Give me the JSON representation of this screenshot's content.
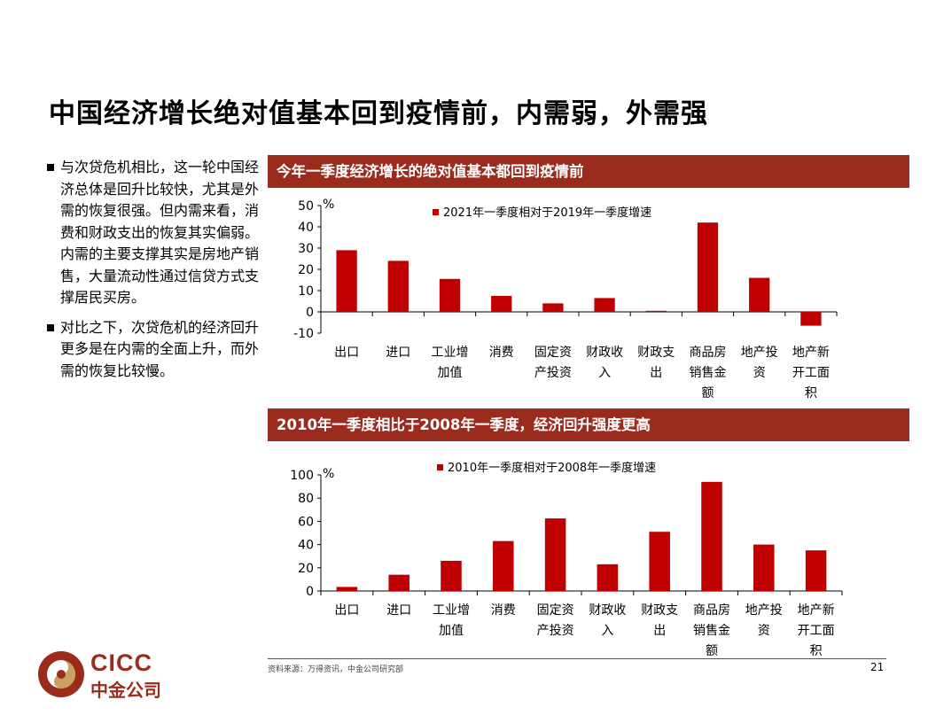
{
  "page": {
    "title": "中国经济增长绝对值基本回到疫情前，内需弱，外需强",
    "bullets": [
      "与次贷危机相比，这一轮中国经济总体是回升比较快，尤其是外需的恢复很强。但内需来看，消费和财政支出的恢复其实偏弱。内需的主要支撑其实是房地产销售，大量流动性通过信贷方式支撑居民买房。",
      "对比之下，次贷危机的经济回升更多是在内需的全面上升，而外需的恢复比较慢。"
    ],
    "chart1_banner": "今年一季度经济增长的绝对值基本都回到疫情前",
    "chart2_banner": "2010年一季度相比于2008年一季度，经济回升强度更高",
    "source": "资料来源：万得资讯，中金公司研究部",
    "page_number": "21",
    "logo": {
      "latin": "CICC",
      "chinese": "中金公司",
      "color": "#9b2b1c"
    }
  },
  "chart_data": [
    {
      "type": "bar",
      "title": "今年一季度经济增长的绝对值基本都回到疫情前",
      "ylabel": "%",
      "ylim": [
        -10,
        50
      ],
      "yticks": [
        "50",
        "40",
        "30",
        "20",
        "10",
        "0",
        "-10"
      ],
      "yticks_values": [
        50,
        40,
        30,
        20,
        10,
        0,
        -10
      ],
      "categories": [
        [
          "出口"
        ],
        [
          "进口"
        ],
        [
          "工业增",
          "加值"
        ],
        [
          "消费"
        ],
        [
          "固定资",
          "产投资"
        ],
        [
          "财政收",
          "入"
        ],
        [
          "财政支",
          "出"
        ],
        [
          "商品房",
          "销售金",
          "额"
        ],
        [
          "地产投",
          "资"
        ],
        [
          "地产新",
          "开工面",
          "积"
        ]
      ],
      "series": [
        {
          "name": "2021年一季度相对于2019年一季度增速",
          "color": "#c00000",
          "values": [
            29,
            24,
            15.5,
            7.5,
            4,
            6.5,
            0.5,
            42,
            16,
            -6.5
          ]
        }
      ],
      "legend": "top"
    },
    {
      "type": "bar",
      "title": "2010年一季度相比于2008年一季度，经济回升强度更高",
      "ylabel": "%",
      "ylim": [
        0,
        100
      ],
      "yticks": [
        "100",
        "80",
        "60",
        "40",
        "20",
        "0"
      ],
      "yticks_values": [
        100,
        80,
        60,
        40,
        20,
        0
      ],
      "categories": [
        [
          "出口"
        ],
        [
          "进口"
        ],
        [
          "工业增",
          "加值"
        ],
        [
          "消费"
        ],
        [
          "固定资",
          "产投资"
        ],
        [
          "财政收",
          "入"
        ],
        [
          "财政支",
          "出"
        ],
        [
          "商品房",
          "销售金",
          "额"
        ],
        [
          "地产投",
          "资"
        ],
        [
          "地产新",
          "开工面",
          "积"
        ]
      ],
      "series": [
        {
          "name": "2010年一季度相对于2008年一季度增速",
          "color": "#c00000",
          "values": [
            3.5,
            14,
            26,
            43,
            62.5,
            23,
            51,
            94,
            40,
            35
          ]
        }
      ],
      "legend": "top"
    }
  ]
}
